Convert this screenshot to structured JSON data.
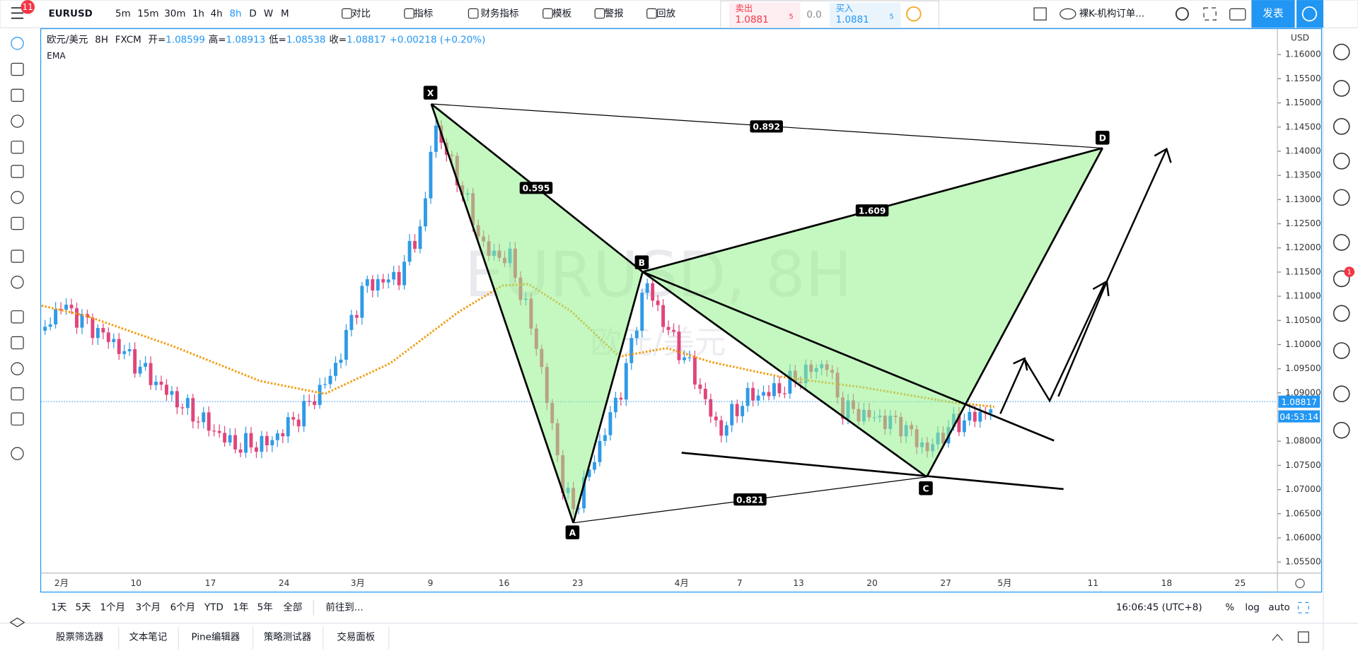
{
  "toolbar": {
    "badge": "11",
    "symbol": "EURUSD",
    "intervals": [
      "5m",
      "15m",
      "30m",
      "1h",
      "4h",
      "8h",
      "D",
      "W",
      "M"
    ],
    "buttons": [
      "对比",
      "指标",
      "财务指标",
      "模板",
      "警报",
      "回放"
    ],
    "sell": {
      "label": "卖出",
      "price": "1.0881",
      "pip": "5"
    },
    "spread": "0.0",
    "buy": {
      "label": "买入",
      "price": "1.0881",
      "pip": "5"
    },
    "layout_name": "裸K-机构订单...",
    "publish": "发表"
  },
  "legend": {
    "symbol": "欧元/美元",
    "interval": "8H",
    "exchange": "FXCM",
    "ohlc": [
      {
        "label": "开=",
        "value": "1.08599"
      },
      {
        "label": "高=",
        "value": "1.08913"
      },
      {
        "label": "低=",
        "value": "1.08538"
      },
      {
        "label": "收=",
        "value": "1.08817"
      }
    ],
    "change": "+0.00218 (+0.20%)",
    "indicator": "EMA"
  },
  "watermark": {
    "title": "EURUSD, 8H",
    "subtitle": "欧元/美元"
  },
  "price_axis": {
    "currency": "USD",
    "ticks": [
      "1.16000",
      "1.15500",
      "1.15000",
      "1.14500",
      "1.14000",
      "1.13500",
      "1.13000",
      "1.12500",
      "1.12000",
      "1.11500",
      "1.11000",
      "1.10500",
      "1.10000",
      "1.09500",
      "1.09000",
      "1.08000",
      "1.07500",
      "1.07000",
      "1.06500",
      "1.06000",
      "1.05500"
    ],
    "last_price": "1.08817",
    "countdown": "04:53:14"
  },
  "time_axis": {
    "ticks": [
      "2月",
      "10",
      "17",
      "24",
      "3月",
      "9",
      "16",
      "23",
      "4月",
      "7",
      "13",
      "20",
      "27",
      "5月",
      "11",
      "18",
      "25"
    ]
  },
  "pattern": {
    "points": [
      "X",
      "A",
      "B",
      "C",
      "D"
    ],
    "ratios": [
      "0.595",
      "1.609",
      "0.892",
      "0.821"
    ]
  },
  "range_bar": {
    "ranges": [
      "1天",
      "5天",
      "1个月",
      "3个月",
      "6个月",
      "YTD",
      "1年",
      "5年",
      "全部"
    ],
    "goto": "前往到...",
    "clock": "16:06:45 (UTC+8)",
    "options": [
      "%",
      "log",
      "auto"
    ]
  },
  "bottom_tabs": [
    "股票筛选器",
    "文本笔记",
    "Pine编辑器",
    "策略测试器",
    "交易面板"
  ],
  "alerts_badge": "1"
}
